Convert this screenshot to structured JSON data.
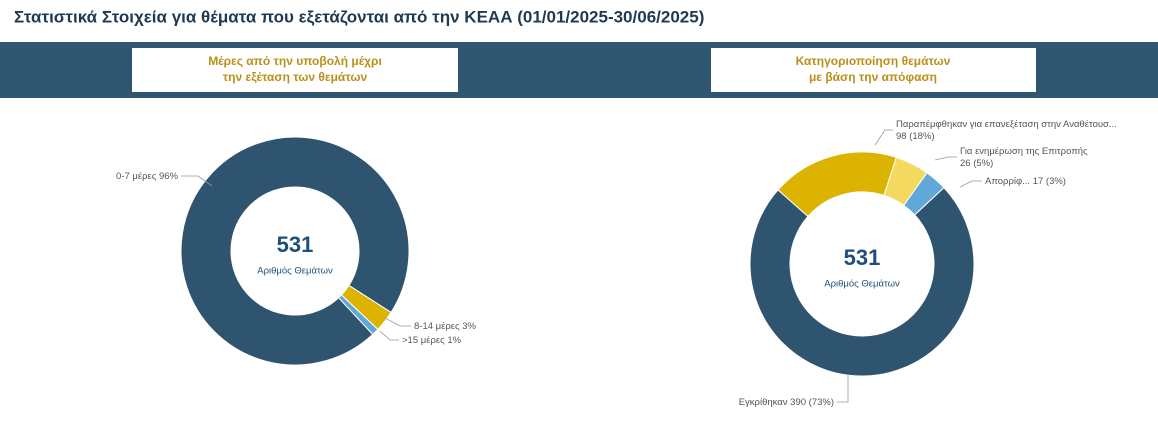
{
  "page_title": "Στατιστικά Στοιχεία για θέματα που εξετάζονται από την ΚΕΑΑ (01/01/2025-30/06/2025)",
  "chart_data": [
    {
      "type": "pie",
      "title_lines": [
        "Μέρες από την υποβολή μέχρι",
        "την εξέταση των θεμάτων"
      ],
      "center_value": 531,
      "center_label": "Αριθμός Θεμάτων",
      "categories": [
        "0-7 μέρες",
        "8-14 μέρες",
        ">15 μέρες"
      ],
      "values": [
        96,
        3,
        1
      ],
      "value_labels": [
        "96%",
        "3%",
        "1%"
      ],
      "colors": [
        "#2f546f",
        "#dbb300",
        "#5fa8d8"
      ]
    },
    {
      "type": "pie",
      "title_lines": [
        "Κατηγοριοποίηση θεμάτων",
        "με βάση την απόφαση"
      ],
      "center_value": 531,
      "center_label": "Αριθμός Θεμάτων",
      "categories": [
        "Εγκρίθηκαν",
        "Παραπέμφθηκαν για επανεξέταση στην Αναθέτουσ...",
        "Για ενημέρωση της Επιτροπής",
        "Απορρίφ..."
      ],
      "values": [
        390,
        98,
        26,
        17
      ],
      "percent_labels": [
        "(73%)",
        "(18%)",
        "(5%)",
        "(3%)"
      ],
      "colors": [
        "#2f546f",
        "#dbb300",
        "#f3d95d",
        "#5fa8d8"
      ]
    }
  ]
}
